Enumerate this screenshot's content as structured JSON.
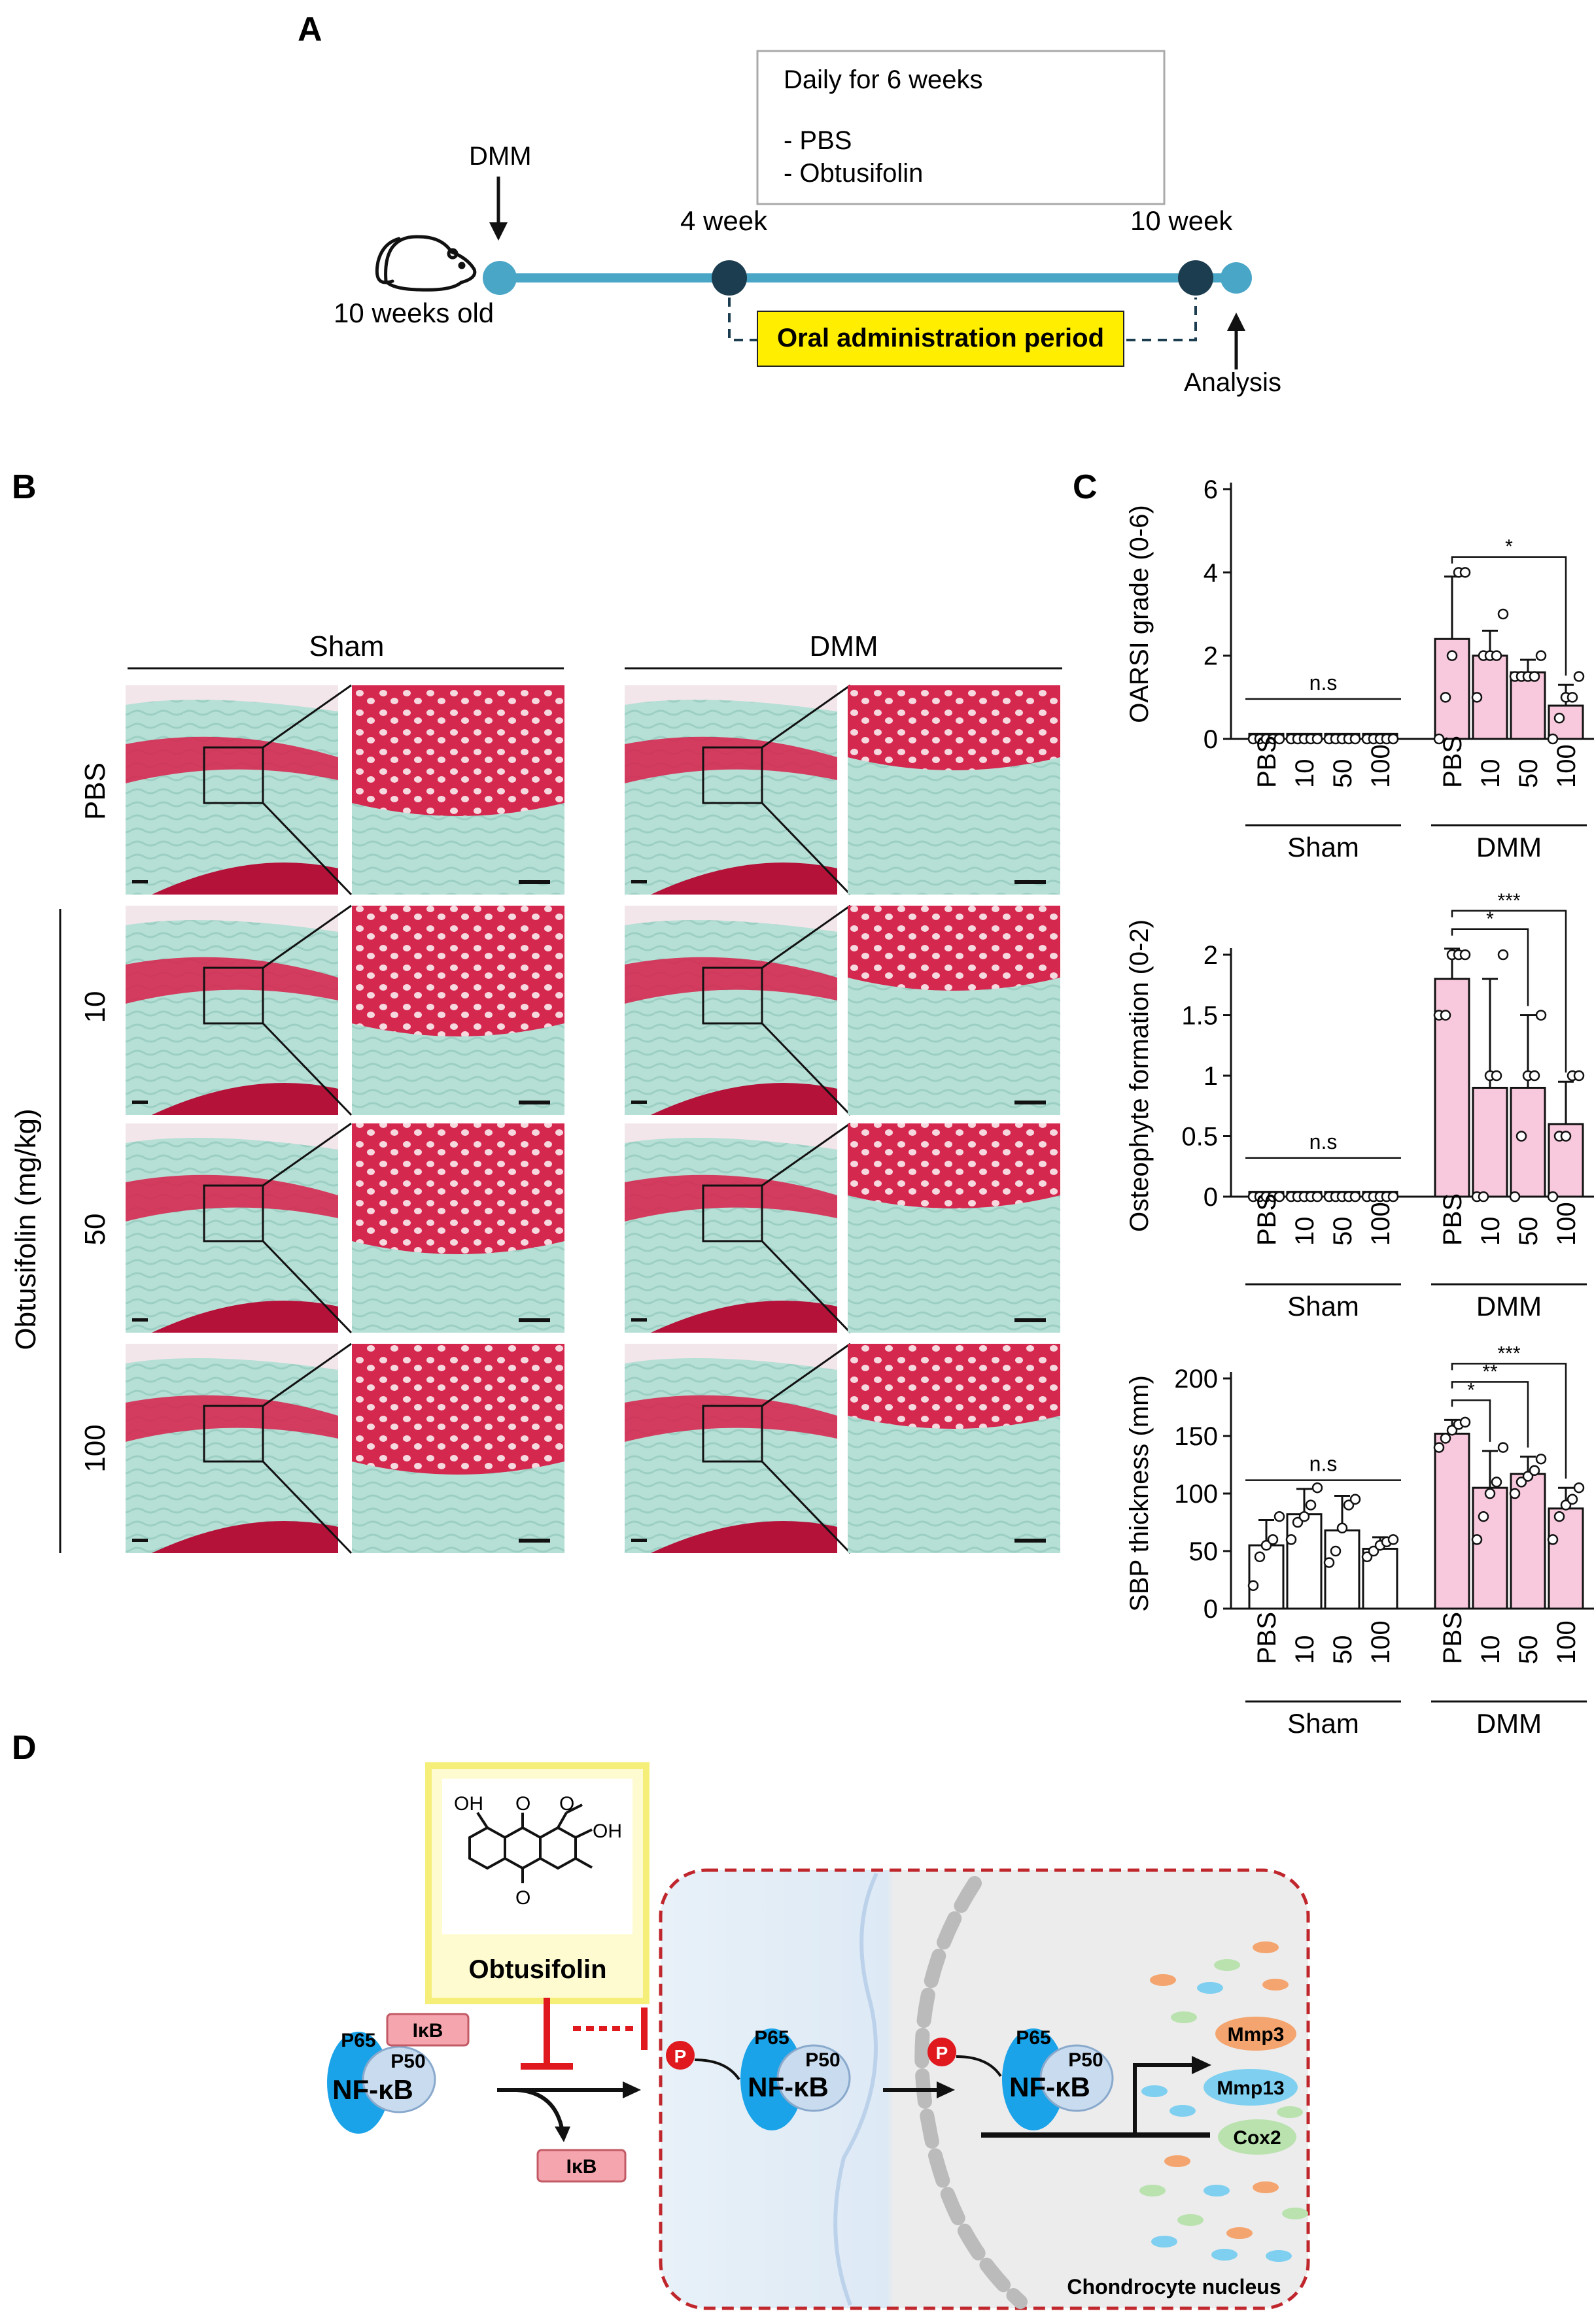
{
  "panel_labels": {
    "a": "A",
    "b": "B",
    "c": "C",
    "d": "D"
  },
  "panel_a": {
    "box_title": "Daily for 6 weeks",
    "box_items": [
      "- PBS",
      "- Obtusifolin"
    ],
    "dmm_label": "DMM",
    "age_label": "10 weeks old",
    "week4_label": "4 week",
    "week10_label": "10 week",
    "period_label": "Oral administration period",
    "analysis_label": "Analysis"
  },
  "panel_b": {
    "sham_header": "Sham",
    "dmm_header": "DMM",
    "row_pbs": "PBS",
    "row_10": "10",
    "row_50": "50",
    "row_100": "100",
    "obtusifolin_label": "Obtusifolin (mg/kg)"
  },
  "panel_d": {
    "oh1": "OH",
    "oh2": "OH",
    "o_top": "O",
    "o_bottom": "O",
    "o_methoxy": "O",
    "compound_label": "Obtusifolin",
    "p65": "P65",
    "p50": "P50",
    "nfkb": "NF-κB",
    "ikb": "IκB",
    "phospho": "P",
    "mmp3": "Mmp3",
    "mmp13": "Mmp13",
    "cox2": "Cox2",
    "nucleus_label": "Chondrocyte nucleus"
  },
  "colors": {
    "teal": "#4aa6c7",
    "navy": "#1c3d4f",
    "yellow": "#ffee00",
    "bar_dmm": "#f8c8dc",
    "safranin": "#d8204a",
    "fast_green": "#a9d8cf",
    "inhibit": "#e0191f"
  },
  "chart_data": [
    {
      "type": "bar",
      "title": "",
      "ylabel": "OARSI grade (0-6)",
      "ylim": [
        0,
        6
      ],
      "yticks": [
        0,
        2,
        4,
        6
      ],
      "categories": [
        "PBS",
        "10",
        "50",
        "100",
        "PBS",
        "10",
        "50",
        "100"
      ],
      "groups": [
        "Sham",
        "DMM"
      ],
      "series": [
        {
          "name": "mean",
          "values": [
            0,
            0,
            0,
            0,
            2.4,
            2.0,
            1.6,
            0.8
          ]
        }
      ],
      "error": [
        0,
        0,
        0,
        0,
        1.5,
        0.6,
        0.3,
        0.5
      ],
      "points": [
        [
          0,
          0,
          0,
          0,
          0
        ],
        [
          0,
          0,
          0,
          0,
          0
        ],
        [
          0,
          0,
          0,
          0,
          0
        ],
        [
          0,
          0,
          0,
          0,
          0
        ],
        [
          0,
          1,
          2,
          4,
          4
        ],
        [
          1,
          2,
          2,
          2,
          3
        ],
        [
          1.5,
          1.5,
          1.5,
          1.5,
          2
        ],
        [
          0,
          0.5,
          1,
          1,
          1.5
        ]
      ],
      "annotations": [
        {
          "text": "n.s",
          "group": "Sham"
        },
        {
          "text": "*",
          "from": 4,
          "to": 7
        }
      ]
    },
    {
      "type": "bar",
      "title": "",
      "ylabel": "Osteophyte formation (0-2)",
      "ylim": [
        0,
        2
      ],
      "yticks": [
        0,
        0.5,
        1,
        1.5,
        2
      ],
      "categories": [
        "PBS",
        "10",
        "50",
        "100",
        "PBS",
        "10",
        "50",
        "100"
      ],
      "groups": [
        "Sham",
        "DMM"
      ],
      "series": [
        {
          "name": "mean",
          "values": [
            0,
            0,
            0,
            0,
            1.8,
            0.9,
            0.9,
            0.6
          ]
        }
      ],
      "error": [
        0,
        0,
        0,
        0,
        0.25,
        0.9,
        0.6,
        0.35
      ],
      "points": [
        [
          0,
          0,
          0,
          0,
          0
        ],
        [
          0,
          0,
          0,
          0,
          0
        ],
        [
          0,
          0,
          0,
          0,
          0
        ],
        [
          0,
          0,
          0,
          0,
          0
        ],
        [
          1.5,
          1.5,
          2,
          2,
          2
        ],
        [
          0,
          0,
          1,
          1,
          2
        ],
        [
          0,
          0.5,
          1,
          1,
          1.5
        ],
        [
          0,
          0.5,
          0.5,
          1,
          1
        ]
      ],
      "annotations": [
        {
          "text": "n.s",
          "group": "Sham"
        },
        {
          "text": "*",
          "from": 4,
          "to": 6
        },
        {
          "text": "***",
          "from": 4,
          "to": 7
        }
      ]
    },
    {
      "type": "bar",
      "title": "",
      "ylabel": "SBP thickness (mm)",
      "ylim": [
        0,
        200
      ],
      "yticks": [
        0,
        50,
        100,
        150,
        200
      ],
      "categories": [
        "PBS",
        "10",
        "50",
        "100",
        "PBS",
        "10",
        "50",
        "100"
      ],
      "groups": [
        "Sham",
        "DMM"
      ],
      "series": [
        {
          "name": "mean",
          "values": [
            55,
            82,
            68,
            52,
            152,
            105,
            117,
            87
          ]
        }
      ],
      "error": [
        22,
        22,
        30,
        10,
        12,
        32,
        15,
        18
      ],
      "points": [
        [
          20,
          45,
          55,
          60,
          80
        ],
        [
          60,
          75,
          80,
          90,
          105
        ],
        [
          40,
          50,
          70,
          90,
          95
        ],
        [
          45,
          50,
          55,
          58,
          60
        ],
        [
          140,
          148,
          155,
          160,
          162
        ],
        [
          60,
          80,
          100,
          110,
          140
        ],
        [
          100,
          110,
          115,
          120,
          130
        ],
        [
          60,
          80,
          90,
          95,
          105
        ]
      ],
      "annotations": [
        {
          "text": "n.s",
          "group": "Sham"
        },
        {
          "text": "*",
          "from": 4,
          "to": 5
        },
        {
          "text": "**",
          "from": 4,
          "to": 6
        },
        {
          "text": "***",
          "from": 4,
          "to": 7
        }
      ]
    }
  ]
}
